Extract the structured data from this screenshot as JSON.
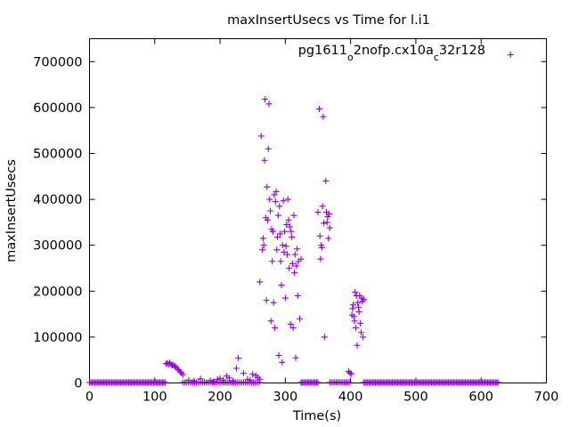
{
  "chart_data": {
    "type": "scatter",
    "title": "maxInsertUsecs vs Time for l.i1",
    "xlabel": "Time(s)",
    "ylabel": "maxInsertUsecs",
    "xlim": [
      0,
      700
    ],
    "ylim": [
      0,
      750000
    ],
    "x_ticks": [
      0,
      100,
      200,
      300,
      400,
      500,
      600,
      700
    ],
    "y_ticks": [
      0,
      100000,
      200000,
      300000,
      400000,
      500000,
      600000,
      700000
    ],
    "x_tick_labels": [
      "0",
      "100",
      "200",
      "300",
      "400",
      "500",
      "600",
      "700"
    ],
    "y_tick_labels": [
      "0",
      "100000",
      "200000",
      "300000",
      "400000",
      "500000",
      "600000",
      "700000"
    ],
    "grid": false,
    "legend_position": "top-right",
    "legend": {
      "label_parts": [
        {
          "text": "pg1611",
          "sub": false
        },
        {
          "text": "o",
          "sub": true
        },
        {
          "text": "2nofp.cx10a",
          "sub": false
        },
        {
          "text": "c",
          "sub": true
        },
        {
          "text": "32r128",
          "sub": false
        }
      ]
    },
    "marker": "plus",
    "color": "#9400d3",
    "series": [
      {
        "points": [
          [
            117,
            42000
          ],
          [
            119,
            43000
          ],
          [
            121,
            41000
          ],
          [
            123,
            44000
          ],
          [
            125,
            40000
          ],
          [
            127,
            38000
          ],
          [
            129,
            39000
          ],
          [
            131,
            36000
          ],
          [
            133,
            34000
          ],
          [
            135,
            30000
          ],
          [
            137,
            28000
          ],
          [
            139,
            24000
          ],
          [
            141,
            22000
          ],
          [
            143,
            18000
          ],
          [
            152,
            6000
          ],
          [
            160,
            4000
          ],
          [
            170,
            9000
          ],
          [
            176,
            2000
          ],
          [
            185,
            5000
          ],
          [
            190,
            3000
          ],
          [
            196,
            8000
          ],
          [
            200,
            10000
          ],
          [
            205,
            6000
          ],
          [
            210,
            15000
          ],
          [
            214,
            11000
          ],
          [
            220,
            4000
          ],
          [
            225,
            32000
          ],
          [
            228,
            54000
          ],
          [
            236,
            21000
          ],
          [
            242,
            8000
          ],
          [
            246,
            6000
          ],
          [
            250,
            19000
          ],
          [
            255,
            16000
          ],
          [
            258,
            12000
          ],
          [
            261,
            8000
          ],
          [
            261,
            220000
          ],
          [
            263,
            538000
          ],
          [
            265,
            290000
          ],
          [
            266,
            315000
          ],
          [
            267,
            300000
          ],
          [
            268,
            485000
          ],
          [
            269,
            618000
          ],
          [
            270,
            360000
          ],
          [
            271,
            180000
          ],
          [
            272,
            427000
          ],
          [
            273,
            355000
          ],
          [
            274,
            510000
          ],
          [
            275,
            608000
          ],
          [
            276,
            400000
          ],
          [
            277,
            375000
          ],
          [
            278,
            135000
          ],
          [
            279,
            335000
          ],
          [
            280,
            265000
          ],
          [
            281,
            330000
          ],
          [
            282,
            175000
          ],
          [
            283,
            410000
          ],
          [
            284,
            120000
          ],
          [
            285,
            395000
          ],
          [
            286,
            417000
          ],
          [
            287,
            290000
          ],
          [
            288,
            318000
          ],
          [
            289,
            365000
          ],
          [
            290,
            60000
          ],
          [
            291,
            385000
          ],
          [
            292,
            325000
          ],
          [
            293,
            265000
          ],
          [
            294,
            213000
          ],
          [
            295,
            45000
          ],
          [
            296,
            300000
          ],
          [
            297,
            397000
          ],
          [
            298,
            285000
          ],
          [
            299,
            330000
          ],
          [
            300,
            185000
          ],
          [
            301,
            298000
          ],
          [
            302,
            345000
          ],
          [
            303,
            280000
          ],
          [
            304,
            400000
          ],
          [
            305,
            355000
          ],
          [
            306,
            250000
          ],
          [
            307,
            340000
          ],
          [
            308,
            128000
          ],
          [
            309,
            330000
          ],
          [
            310,
            318000
          ],
          [
            311,
            260000
          ],
          [
            312,
            120000
          ],
          [
            313,
            365000
          ],
          [
            314,
            240000
          ],
          [
            315,
            280000
          ],
          [
            316,
            55000
          ],
          [
            317,
            255000
          ],
          [
            318,
            292000
          ],
          [
            319,
            190000
          ],
          [
            320,
            265000
          ],
          [
            322,
            140000
          ],
          [
            324,
            270000
          ],
          [
            350,
            372000
          ],
          [
            352,
            597000
          ],
          [
            353,
            320000
          ],
          [
            354,
            270000
          ],
          [
            355,
            300000
          ],
          [
            356,
            295000
          ],
          [
            357,
            385000
          ],
          [
            358,
            580000
          ],
          [
            359,
            348000
          ],
          [
            360,
            100000
          ],
          [
            362,
            440000
          ],
          [
            363,
            372000
          ],
          [
            364,
            350000
          ],
          [
            365,
            362000
          ],
          [
            366,
            315000
          ],
          [
            367,
            368000
          ],
          [
            368,
            338000
          ],
          [
            397,
            25000
          ],
          [
            399,
            22000
          ],
          [
            401,
            20000
          ],
          [
            402,
            148000
          ],
          [
            403,
            162000
          ],
          [
            404,
            170000
          ],
          [
            405,
            145000
          ],
          [
            406,
            135000
          ],
          [
            407,
            198000
          ],
          [
            408,
            120000
          ],
          [
            409,
            190000
          ],
          [
            410,
            82000
          ],
          [
            411,
            175000
          ],
          [
            412,
            165000
          ],
          [
            413,
            155000
          ],
          [
            414,
            190000
          ],
          [
            415,
            130000
          ],
          [
            416,
            110000
          ],
          [
            417,
            185000
          ],
          [
            418,
            178000
          ],
          [
            419,
            100000
          ],
          [
            420,
            182000
          ]
        ]
      }
    ],
    "baseline_clusters": [
      {
        "x_range": [
          0,
          117
        ],
        "step": 2,
        "y": 1000
      },
      {
        "x_range": [
          143,
          260
        ],
        "step": 3,
        "y": 1000
      },
      {
        "x_range": [
          324,
          350
        ],
        "step": 2,
        "y": 1000
      },
      {
        "x_range": [
          368,
          400
        ],
        "step": 2.5,
        "y": 1200
      },
      {
        "x_range": [
          420,
          626
        ],
        "step": 2,
        "y": 1000
      }
    ],
    "legend_marker_position": [
      645,
      715000
    ]
  }
}
